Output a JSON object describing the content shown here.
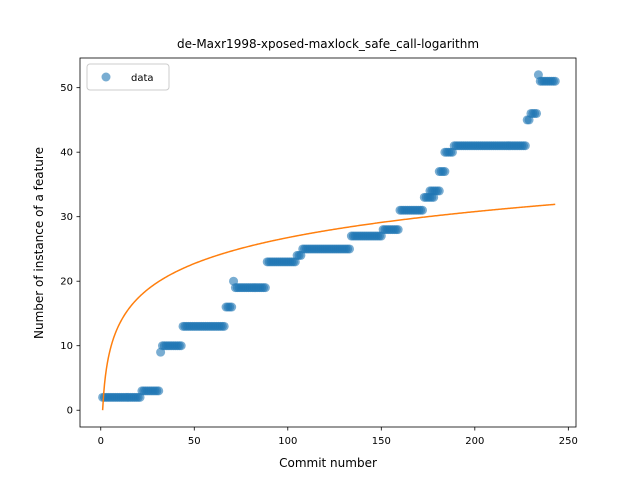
{
  "colors": {
    "data": "#1f77b4",
    "fit": "#ff7f0e"
  },
  "chart_data": {
    "type": "scatter",
    "title": "de-Maxr1998-xposed-maxlock_safe_call-logarithm",
    "xlabel": "Commit number",
    "ylabel": "Number of instance of a feature",
    "xlim": [
      -11.1,
      254.1
    ],
    "ylim": [
      -2.6,
      54.6
    ],
    "xticks": [
      0,
      50,
      100,
      150,
      200,
      250
    ],
    "yticks": [
      0,
      10,
      20,
      30,
      40,
      50
    ],
    "grid": false,
    "legend": {
      "position": "top-left",
      "entries": [
        "data"
      ]
    },
    "steps": [
      [
        1,
        21,
        2
      ],
      [
        22,
        31,
        3
      ],
      [
        32,
        32,
        9
      ],
      [
        33,
        43,
        10
      ],
      [
        44,
        66,
        13
      ],
      [
        67,
        70,
        16
      ],
      [
        71,
        71,
        20
      ],
      [
        72,
        88,
        19
      ],
      [
        89,
        104,
        23
      ],
      [
        105,
        107,
        24
      ],
      [
        108,
        133,
        25
      ],
      [
        134,
        150,
        27
      ],
      [
        151,
        159,
        28
      ],
      [
        160,
        172,
        31
      ],
      [
        173,
        178,
        33
      ],
      [
        176,
        181,
        34
      ],
      [
        181,
        184,
        37
      ],
      [
        184,
        188,
        40
      ],
      [
        189,
        227,
        41
      ],
      [
        228,
        229,
        45
      ],
      [
        230,
        233,
        46
      ],
      [
        234,
        234,
        52
      ],
      [
        235,
        243,
        51
      ]
    ],
    "fit": {
      "a": 0,
      "b": 5.81,
      "x_range": [
        1,
        243
      ]
    }
  }
}
